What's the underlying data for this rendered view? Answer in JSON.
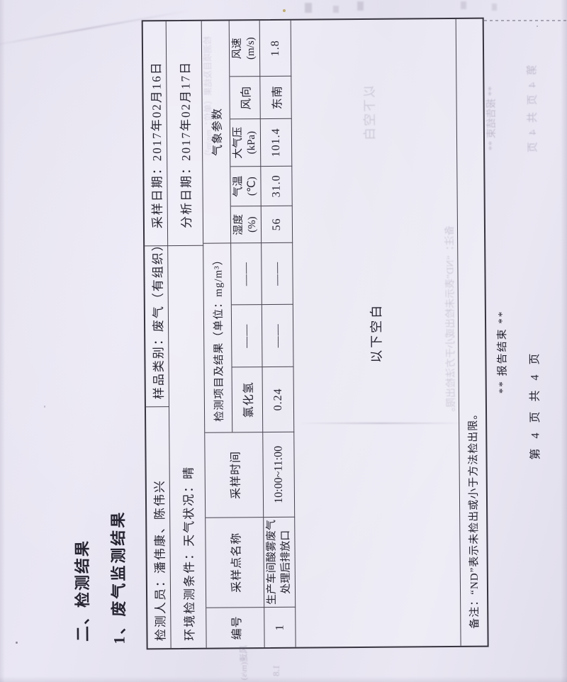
{
  "document": {
    "section_title": "二、检测结果",
    "subsection_title": "1、废气监测结果",
    "footer": {
      "end_mark": "** 报告结束 **",
      "page_number": "第 4 页 共 4 页"
    }
  },
  "table": {
    "meta": {
      "personnel": "检测人员：潘伟康、陈伟兴",
      "sample_type": "样品类别：废气（有组织）",
      "sampling_date": "采样日期：2017年02月16日",
      "env_conditions": "环境检测条件：天气状况：晴",
      "analysis_date": "分析日期：2017年02月17日"
    },
    "headers": {
      "no": "编号",
      "sampling_point": "采样点名称",
      "sampling_time": "采样时间",
      "items_group": "检测项目及结果（单位：mg/m³）",
      "weather_group": "气象参数",
      "item_1": "氯化氢",
      "item_2": "——",
      "item_3": "——",
      "humidity_l1": "湿度",
      "humidity_l2": "(%)",
      "temp_l1": "气温",
      "temp_l2": "(℃)",
      "pressure_l1": "大气压",
      "pressure_l2": "(kPa)",
      "wind_dir": "风向",
      "wind_speed_l1": "风速",
      "wind_speed_l2": "(m/s)"
    },
    "row1": {
      "no": "1",
      "point_line1": "生产车间酸雾废气",
      "point_line2": "处理后排放口",
      "time": "10:00~11:00",
      "item_1": "0.24",
      "item_2": "——",
      "item_3": "——",
      "humidity": "56",
      "temp": "31.0",
      "pressure": "101.4",
      "wind_dir": "东南",
      "wind_speed": "1.8"
    },
    "blank_note": "以下空白",
    "remark": "备注：“ND”表示未检出或小于方法检出限。"
  },
  "artifacts": {
    "ghost_blank": "以下空白",
    "ghost_unit": "检测项目及结果（单位：mg/m³）",
    "ghost_remark": "备注：“ND”表示未检出或小于方法检出限。",
    "ghost_end": "** 报告结束 **",
    "ghost_page": "第 4 页 共 4 页",
    "ghost_wind_label": "风速(m/s)",
    "ghost_wind_value": "1.8"
  },
  "colors": {
    "paper": "#e7e4f0",
    "ink": "#262430",
    "table_line": "#47434f"
  }
}
